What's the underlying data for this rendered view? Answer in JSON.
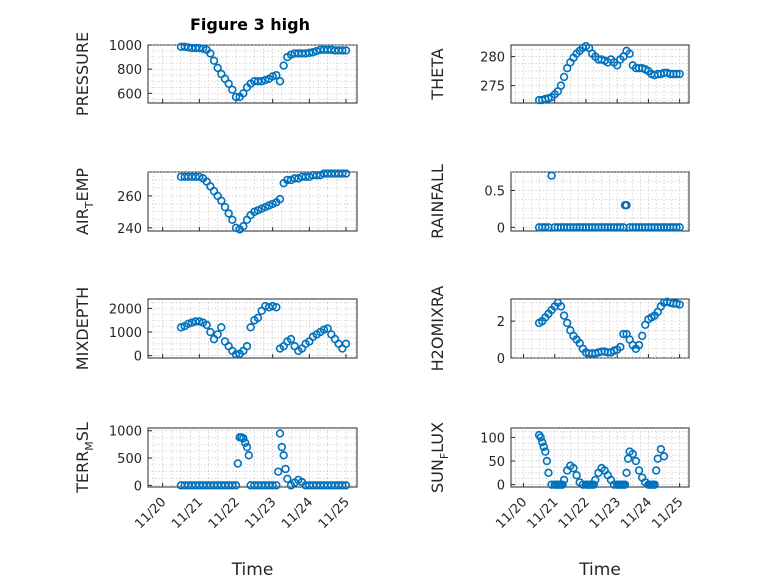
{
  "figure_title": "Figure 3 high",
  "colors": {
    "marker": "#0072bd",
    "axis": "#262626",
    "grid": "#bdbdbd"
  },
  "chart_data": [
    {
      "type": "scatter",
      "id": "pressure",
      "ylabel": "PRESSURE",
      "xlabel": "",
      "title": "Figure 3 high",
      "ylim": [
        520,
        1000
      ],
      "yticks": [
        600,
        800,
        1000
      ],
      "xlim": [
        19.6,
        25.3
      ],
      "xticks": [
        20,
        21,
        22,
        23,
        24,
        25
      ],
      "show_xticklabels": false,
      "x": [
        20.5,
        20.6,
        20.7,
        20.8,
        20.9,
        21.0,
        21.1,
        21.2,
        21.3,
        21.4,
        21.5,
        21.6,
        21.7,
        21.8,
        21.9,
        22.0,
        22.1,
        22.2,
        22.3,
        22.4,
        22.5,
        22.6,
        22.7,
        22.8,
        22.9,
        23.0,
        23.1,
        23.2,
        23.3,
        23.4,
        23.5,
        23.6,
        23.7,
        23.8,
        23.9,
        24.0,
        24.1,
        24.2,
        24.3,
        24.4,
        24.5,
        24.6,
        24.7,
        24.8,
        24.9,
        25.0
      ],
      "y": [
        985,
        985,
        980,
        975,
        975,
        975,
        970,
        960,
        930,
        870,
        810,
        760,
        720,
        680,
        630,
        570,
        570,
        600,
        650,
        680,
        700,
        700,
        700,
        710,
        720,
        740,
        750,
        700,
        830,
        900,
        920,
        930,
        930,
        930,
        930,
        935,
        940,
        950,
        960,
        960,
        960,
        960,
        955,
        955,
        955,
        955
      ]
    },
    {
      "type": "scatter",
      "id": "theta",
      "ylabel": "THETA",
      "xlabel": "",
      "ylim": [
        272,
        282
      ],
      "yticks": [
        275,
        280
      ],
      "xlim": [
        19.6,
        25.3
      ],
      "xticks": [
        20,
        21,
        22,
        23,
        24,
        25
      ],
      "show_xticklabels": false,
      "x": [
        20.5,
        20.6,
        20.7,
        20.8,
        20.9,
        21.0,
        21.1,
        21.2,
        21.3,
        21.4,
        21.5,
        21.6,
        21.7,
        21.8,
        21.9,
        22.0,
        22.1,
        22.2,
        22.3,
        22.4,
        22.5,
        22.6,
        22.7,
        22.8,
        22.9,
        23.0,
        23.1,
        23.2,
        23.3,
        23.4,
        23.5,
        23.6,
        23.7,
        23.8,
        23.9,
        24.0,
        24.1,
        24.2,
        24.3,
        24.4,
        24.5,
        24.6,
        24.7,
        24.8,
        24.9,
        25.0
      ],
      "y": [
        272.5,
        272.5,
        272.7,
        272.8,
        273.0,
        273.5,
        274.0,
        275.0,
        276.5,
        278.0,
        279.0,
        279.8,
        280.5,
        281.0,
        281.5,
        281.8,
        281.5,
        280.5,
        280.0,
        279.5,
        279.5,
        279.3,
        279.0,
        279.5,
        279.0,
        278.5,
        279.5,
        280.0,
        281.0,
        280.5,
        278.5,
        278.0,
        278.0,
        278.0,
        277.8,
        277.5,
        277.0,
        276.8,
        277.0,
        277.0,
        277.2,
        277.2,
        277.0,
        277.0,
        277.0,
        277.0
      ]
    },
    {
      "type": "scatter",
      "id": "air_temp",
      "ylabel": "AIR_TEMP",
      "xlabel": "",
      "ylim": [
        238,
        275
      ],
      "yticks": [
        240,
        260
      ],
      "xlim": [
        19.6,
        25.3
      ],
      "xticks": [
        20,
        21,
        22,
        23,
        24,
        25
      ],
      "show_xticklabels": false,
      "x": [
        20.5,
        20.6,
        20.7,
        20.8,
        20.9,
        21.0,
        21.1,
        21.2,
        21.3,
        21.4,
        21.5,
        21.6,
        21.7,
        21.8,
        21.9,
        22.0,
        22.1,
        22.2,
        22.3,
        22.4,
        22.5,
        22.6,
        22.7,
        22.8,
        22.9,
        23.0,
        23.1,
        23.2,
        23.3,
        23.4,
        23.5,
        23.6,
        23.7,
        23.8,
        23.9,
        24.0,
        24.1,
        24.2,
        24.3,
        24.4,
        24.5,
        24.6,
        24.7,
        24.8,
        24.9,
        25.0
      ],
      "y": [
        272,
        272,
        272,
        272,
        272,
        272,
        271,
        269,
        266,
        263,
        260,
        257,
        253,
        249,
        245,
        240,
        239,
        241,
        245,
        248,
        250,
        251,
        252,
        253,
        254,
        255,
        256,
        258,
        268,
        270,
        270,
        271,
        271,
        272,
        272,
        272,
        273,
        273,
        273,
        274,
        274,
        274,
        274,
        274,
        274,
        274
      ]
    },
    {
      "type": "scatter",
      "id": "rainfall",
      "ylabel": "RAINFALL",
      "xlabel": "",
      "ylim": [
        -0.05,
        0.75
      ],
      "yticks": [
        0,
        0.5
      ],
      "xlim": [
        19.6,
        25.3
      ],
      "xticks": [
        20,
        21,
        22,
        23,
        24,
        25
      ],
      "show_xticklabels": false,
      "x": [
        20.5,
        20.6,
        20.7,
        20.8,
        20.9,
        21.0,
        21.1,
        21.2,
        21.3,
        21.4,
        21.5,
        21.6,
        21.7,
        21.8,
        21.9,
        22.0,
        22.1,
        22.2,
        22.3,
        22.4,
        22.5,
        22.6,
        22.7,
        22.8,
        22.9,
        23.0,
        23.1,
        23.2,
        23.3,
        23.4,
        23.5,
        23.6,
        23.7,
        23.8,
        23.9,
        24.0,
        24.1,
        24.2,
        24.3,
        24.4,
        24.5,
        24.6,
        24.7,
        24.8,
        24.9,
        25.0,
        23.25
      ],
      "y": [
        0,
        0,
        0,
        0,
        0.7,
        0,
        0,
        0,
        0,
        0,
        0,
        0,
        0,
        0,
        0,
        0,
        0,
        0,
        0,
        0,
        0,
        0,
        0,
        0,
        0,
        0,
        0,
        0,
        0.3,
        0,
        0,
        0,
        0,
        0,
        0,
        0,
        0,
        0,
        0,
        0,
        0,
        0,
        0,
        0,
        0,
        0,
        0.3
      ]
    },
    {
      "type": "scatter",
      "id": "mixdepth",
      "ylabel": "MIXDEPTH",
      "xlabel": "",
      "ylim": [
        -100,
        2400
      ],
      "yticks": [
        0,
        1000,
        2000
      ],
      "xlim": [
        19.6,
        25.3
      ],
      "xticks": [
        20,
        21,
        22,
        23,
        24,
        25
      ],
      "show_xticklabels": false,
      "x": [
        20.5,
        20.6,
        20.7,
        20.8,
        20.9,
        21.0,
        21.1,
        21.2,
        21.3,
        21.4,
        21.5,
        21.6,
        21.7,
        21.8,
        21.9,
        22.0,
        22.1,
        22.2,
        22.3,
        22.4,
        22.5,
        22.6,
        22.7,
        22.8,
        22.9,
        23.0,
        23.1,
        23.2,
        23.3,
        23.4,
        23.5,
        23.6,
        23.7,
        23.8,
        23.9,
        24.0,
        24.1,
        24.2,
        24.3,
        24.4,
        24.5,
        24.6,
        24.7,
        24.8,
        24.9,
        25.0
      ],
      "y": [
        1200,
        1250,
        1350,
        1400,
        1450,
        1450,
        1400,
        1300,
        1000,
        700,
        900,
        1200,
        600,
        400,
        200,
        50,
        80,
        200,
        400,
        1200,
        1500,
        1600,
        1900,
        2100,
        2050,
        2100,
        2050,
        300,
        400,
        600,
        700,
        400,
        200,
        300,
        500,
        600,
        800,
        900,
        1000,
        1100,
        1150,
        900,
        700,
        500,
        300,
        500
      ]
    },
    {
      "type": "scatter",
      "id": "h2omixra",
      "ylabel": "H2OMIXRA",
      "xlabel": "",
      "ylim": [
        0,
        3.2
      ],
      "yticks": [
        0,
        2
      ],
      "xlim": [
        19.6,
        25.3
      ],
      "xticks": [
        20,
        21,
        22,
        23,
        24,
        25
      ],
      "show_xticklabels": false,
      "x": [
        20.5,
        20.6,
        20.7,
        20.8,
        20.9,
        21.0,
        21.1,
        21.2,
        21.3,
        21.4,
        21.5,
        21.6,
        21.7,
        21.8,
        21.9,
        22.0,
        22.1,
        22.2,
        22.3,
        22.4,
        22.5,
        22.6,
        22.7,
        22.8,
        22.9,
        23.0,
        23.1,
        23.2,
        23.3,
        23.4,
        23.5,
        23.6,
        23.7,
        23.8,
        23.9,
        24.0,
        24.1,
        24.2,
        24.3,
        24.4,
        24.5,
        24.6,
        24.7,
        24.8,
        24.9,
        25.0
      ],
      "y": [
        1.9,
        2.0,
        2.2,
        2.4,
        2.6,
        2.8,
        3.0,
        2.8,
        2.3,
        1.9,
        1.5,
        1.2,
        1.0,
        0.8,
        0.5,
        0.3,
        0.25,
        0.25,
        0.25,
        0.3,
        0.35,
        0.35,
        0.3,
        0.3,
        0.4,
        0.45,
        0.6,
        1.3,
        1.3,
        1.0,
        0.7,
        0.5,
        0.7,
        1.2,
        1.8,
        2.1,
        2.2,
        2.3,
        2.5,
        2.8,
        3.0,
        3.05,
        3.0,
        2.95,
        2.95,
        2.9
      ]
    },
    {
      "type": "scatter",
      "id": "terr_msl",
      "ylabel": "TERR_MSL",
      "xlabel": "Time",
      "ylim": [
        -30,
        1050
      ],
      "yticks": [
        0,
        500,
        1000
      ],
      "xlim": [
        19.6,
        25.3
      ],
      "xticks": [
        20,
        21,
        22,
        23,
        24,
        25
      ],
      "xticklabels": [
        "11/20",
        "11/21",
        "11/22",
        "11/23",
        "11/24",
        "11/25"
      ],
      "show_xticklabels": true,
      "x": [
        20.5,
        20.6,
        20.7,
        20.8,
        20.9,
        21.0,
        21.1,
        21.2,
        21.3,
        21.4,
        21.5,
        21.6,
        21.7,
        21.8,
        21.9,
        22.0,
        22.05,
        22.1,
        22.15,
        22.2,
        22.25,
        22.3,
        22.35,
        22.4,
        22.5,
        22.6,
        22.7,
        22.8,
        22.9,
        23.0,
        23.1,
        23.15,
        23.2,
        23.25,
        23.3,
        23.35,
        23.4,
        23.5,
        23.6,
        23.7,
        23.8,
        23.9,
        24.0,
        24.1,
        24.2,
        24.3,
        24.4,
        24.5,
        24.6,
        24.7,
        24.8,
        24.9,
        25.0
      ],
      "y": [
        0,
        0,
        0,
        0,
        0,
        0,
        0,
        0,
        0,
        0,
        0,
        0,
        0,
        0,
        0,
        0,
        400,
        880,
        880,
        860,
        780,
        700,
        550,
        0,
        0,
        0,
        0,
        0,
        0,
        0,
        0,
        250,
        950,
        700,
        550,
        300,
        120,
        0,
        50,
        100,
        60,
        0,
        0,
        0,
        0,
        0,
        0,
        0,
        0,
        0,
        0,
        0,
        0
      ]
    },
    {
      "type": "scatter",
      "id": "sun_flux",
      "ylabel": "SUN_FLUX",
      "xlabel": "Time",
      "ylim": [
        -5,
        120
      ],
      "yticks": [
        0,
        50,
        100
      ],
      "xlim": [
        19.6,
        25.3
      ],
      "xticks": [
        20,
        21,
        22,
        23,
        24,
        25
      ],
      "xticklabels": [
        "11/20",
        "11/21",
        "11/22",
        "11/23",
        "11/24",
        "11/25"
      ],
      "show_xticklabels": true,
      "x": [
        20.5,
        20.55,
        20.6,
        20.65,
        20.7,
        20.75,
        20.8,
        20.9,
        21.0,
        21.05,
        21.1,
        21.15,
        21.2,
        21.25,
        21.3,
        21.4,
        21.5,
        21.6,
        21.7,
        21.8,
        21.9,
        22.0,
        22.05,
        22.1,
        22.15,
        22.2,
        22.25,
        22.3,
        22.4,
        22.5,
        22.6,
        22.7,
        22.8,
        22.9,
        23.0,
        23.05,
        23.1,
        23.15,
        23.2,
        23.25,
        23.3,
        23.35,
        23.4,
        23.5,
        23.6,
        23.7,
        23.8,
        23.9,
        24.0,
        24.05,
        24.1,
        24.15,
        24.2,
        24.25,
        24.3,
        24.4,
        24.5
      ],
      "y": [
        105,
        100,
        90,
        80,
        70,
        50,
        25,
        0,
        0,
        0,
        0,
        0,
        0,
        0,
        10,
        30,
        40,
        35,
        20,
        5,
        0,
        0,
        0,
        0,
        0,
        0,
        0,
        10,
        25,
        35,
        30,
        20,
        10,
        0,
        0,
        0,
        0,
        0,
        0,
        0,
        25,
        55,
        70,
        65,
        50,
        30,
        15,
        5,
        0,
        0,
        0,
        0,
        0,
        30,
        55,
        75,
        60
      ]
    }
  ]
}
